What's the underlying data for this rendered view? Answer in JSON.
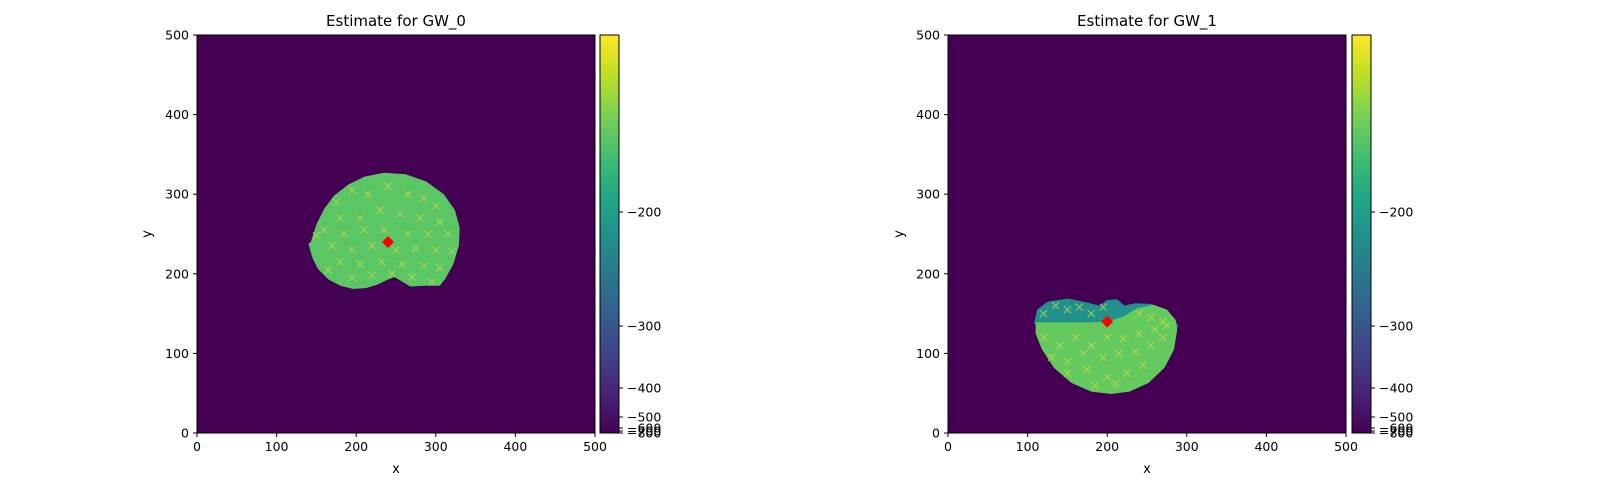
{
  "chart_data": [
    {
      "type": "heatmap",
      "title": "Estimate for GW_0",
      "xlabel": "x",
      "ylabel": "y",
      "xlim": [
        0,
        500
      ],
      "ylim": [
        0,
        500
      ],
      "xticks": [
        0,
        100,
        200,
        300,
        400,
        500
      ],
      "yticks": [
        0,
        100,
        200,
        300,
        400,
        500
      ],
      "grid": false,
      "colorbar": {
        "colormap": "viridis",
        "ticks": [
          {
            "value": -200,
            "label": "−200"
          },
          {
            "value": -300,
            "label": "−300"
          },
          {
            "value": -400,
            "label": "−400"
          },
          {
            "value": -500,
            "label": "−500"
          },
          {
            "value": -600,
            "label": "−600"
          },
          {
            "value": -700,
            "label": "−700"
          },
          {
            "value": -800,
            "label": "−800"
          }
        ]
      },
      "background_level": 0.0,
      "region": {
        "description": "high-likelihood blob",
        "level": 0.74,
        "outline": [
          [
            140,
            238
          ],
          [
            143,
            240
          ],
          [
            150,
            262
          ],
          [
            160,
            282
          ],
          [
            172,
            298
          ],
          [
            190,
            312
          ],
          [
            210,
            322
          ],
          [
            235,
            327
          ],
          [
            262,
            325
          ],
          [
            288,
            316
          ],
          [
            310,
            300
          ],
          [
            324,
            280
          ],
          [
            330,
            258
          ],
          [
            329,
            235
          ],
          [
            322,
            212
          ],
          [
            312,
            194
          ],
          [
            305,
            185
          ],
          [
            285,
            185
          ],
          [
            268,
            184
          ],
          [
            258,
            190
          ],
          [
            248,
            196
          ],
          [
            238,
            192
          ],
          [
            226,
            186
          ],
          [
            212,
            182
          ],
          [
            196,
            181
          ],
          [
            180,
            185
          ],
          [
            165,
            193
          ],
          [
            152,
            206
          ],
          [
            145,
            220
          ],
          [
            140,
            238
          ]
        ]
      },
      "sample_points": [
        [
          175,
          290
        ],
        [
          195,
          305
        ],
        [
          215,
          300
        ],
        [
          240,
          310
        ],
        [
          265,
          300
        ],
        [
          285,
          295
        ],
        [
          300,
          285
        ],
        [
          180,
          270
        ],
        [
          205,
          270
        ],
        [
          230,
          280
        ],
        [
          255,
          275
        ],
        [
          280,
          270
        ],
        [
          305,
          265
        ],
        [
          160,
          255
        ],
        [
          185,
          250
        ],
        [
          210,
          255
        ],
        [
          235,
          255
        ],
        [
          265,
          250
        ],
        [
          290,
          250
        ],
        [
          315,
          250
        ],
        [
          170,
          235
        ],
        [
          195,
          230
        ],
        [
          220,
          235
        ],
        [
          250,
          230
        ],
        [
          275,
          232
        ],
        [
          300,
          230
        ],
        [
          320,
          228
        ],
        [
          180,
          215
        ],
        [
          205,
          212
        ],
        [
          232,
          215
        ],
        [
          258,
          212
        ],
        [
          285,
          210
        ],
        [
          305,
          208
        ],
        [
          195,
          195
        ],
        [
          220,
          198
        ],
        [
          245,
          200
        ],
        [
          270,
          196
        ],
        [
          295,
          190
        ],
        [
          165,
          205
        ],
        [
          150,
          248
        ]
      ],
      "marker": {
        "x": 240,
        "y": 240,
        "color": "#ff0000",
        "shape": "diamond"
      }
    },
    {
      "type": "heatmap",
      "title": "Estimate for GW_1",
      "xlabel": "x",
      "ylabel": "y",
      "xlim": [
        0,
        500
      ],
      "ylim": [
        0,
        500
      ],
      "xticks": [
        0,
        100,
        200,
        300,
        400,
        500
      ],
      "yticks": [
        0,
        100,
        200,
        300,
        400,
        500
      ],
      "grid": false,
      "colorbar": {
        "colormap": "viridis",
        "ticks": [
          {
            "value": -200,
            "label": "−200"
          },
          {
            "value": -300,
            "label": "−300"
          },
          {
            "value": -400,
            "label": "−400"
          },
          {
            "value": -500,
            "label": "−500"
          },
          {
            "value": -600,
            "label": "−600"
          },
          {
            "value": -700,
            "label": "−700"
          },
          {
            "value": -800,
            "label": "−800"
          }
        ]
      },
      "background_level": 0.0,
      "regions": [
        {
          "description": "upper lobe",
          "level": 0.5,
          "outline": [
            [
              108,
              137
            ],
            [
              112,
              155
            ],
            [
              125,
              165
            ],
            [
              150,
              169
            ],
            [
              175,
              164
            ],
            [
              190,
              160
            ],
            [
              200,
              167
            ],
            [
              212,
              168
            ],
            [
              222,
              160
            ],
            [
              235,
              163
            ],
            [
              255,
              162
            ],
            [
              272,
              155
            ],
            [
              283,
              145
            ],
            [
              290,
              133
            ],
            [
              108,
              137
            ]
          ]
        },
        {
          "description": "lower bowl",
          "level": 0.76,
          "outline": [
            [
              110,
              139
            ],
            [
              180,
              139
            ],
            [
              200,
              140
            ],
            [
              220,
              146
            ],
            [
              238,
              157
            ],
            [
              258,
              161
            ],
            [
              275,
              155
            ],
            [
              286,
              142
            ],
            [
              288,
              130
            ],
            [
              284,
              105
            ],
            [
              272,
              82
            ],
            [
              252,
              63
            ],
            [
              228,
              52
            ],
            [
              205,
              49
            ],
            [
              180,
              52
            ],
            [
              155,
              63
            ],
            [
              133,
              82
            ],
            [
              118,
              105
            ],
            [
              110,
              125
            ],
            [
              110,
              139
            ]
          ]
        }
      ],
      "sample_points": [
        [
          120,
          150
        ],
        [
          135,
          160
        ],
        [
          150,
          155
        ],
        [
          165,
          158
        ],
        [
          180,
          150
        ],
        [
          195,
          158
        ],
        [
          120,
          120
        ],
        [
          140,
          110
        ],
        [
          160,
          120
        ],
        [
          180,
          110
        ],
        [
          200,
          120
        ],
        [
          220,
          118
        ],
        [
          240,
          125
        ],
        [
          260,
          130
        ],
        [
          275,
          135
        ],
        [
          130,
          95
        ],
        [
          150,
          90
        ],
        [
          170,
          100
        ],
        [
          195,
          95
        ],
        [
          215,
          100
        ],
        [
          235,
          102
        ],
        [
          255,
          110
        ],
        [
          270,
          120
        ],
        [
          150,
          75
        ],
        [
          175,
          80
        ],
        [
          200,
          70
        ],
        [
          225,
          75
        ],
        [
          245,
          85
        ],
        [
          185,
          60
        ],
        [
          210,
          62
        ],
        [
          240,
          150
        ],
        [
          255,
          145
        ],
        [
          270,
          140
        ]
      ],
      "marker": {
        "x": 200,
        "y": 140,
        "color": "#ff0000",
        "shape": "diamond"
      }
    }
  ]
}
